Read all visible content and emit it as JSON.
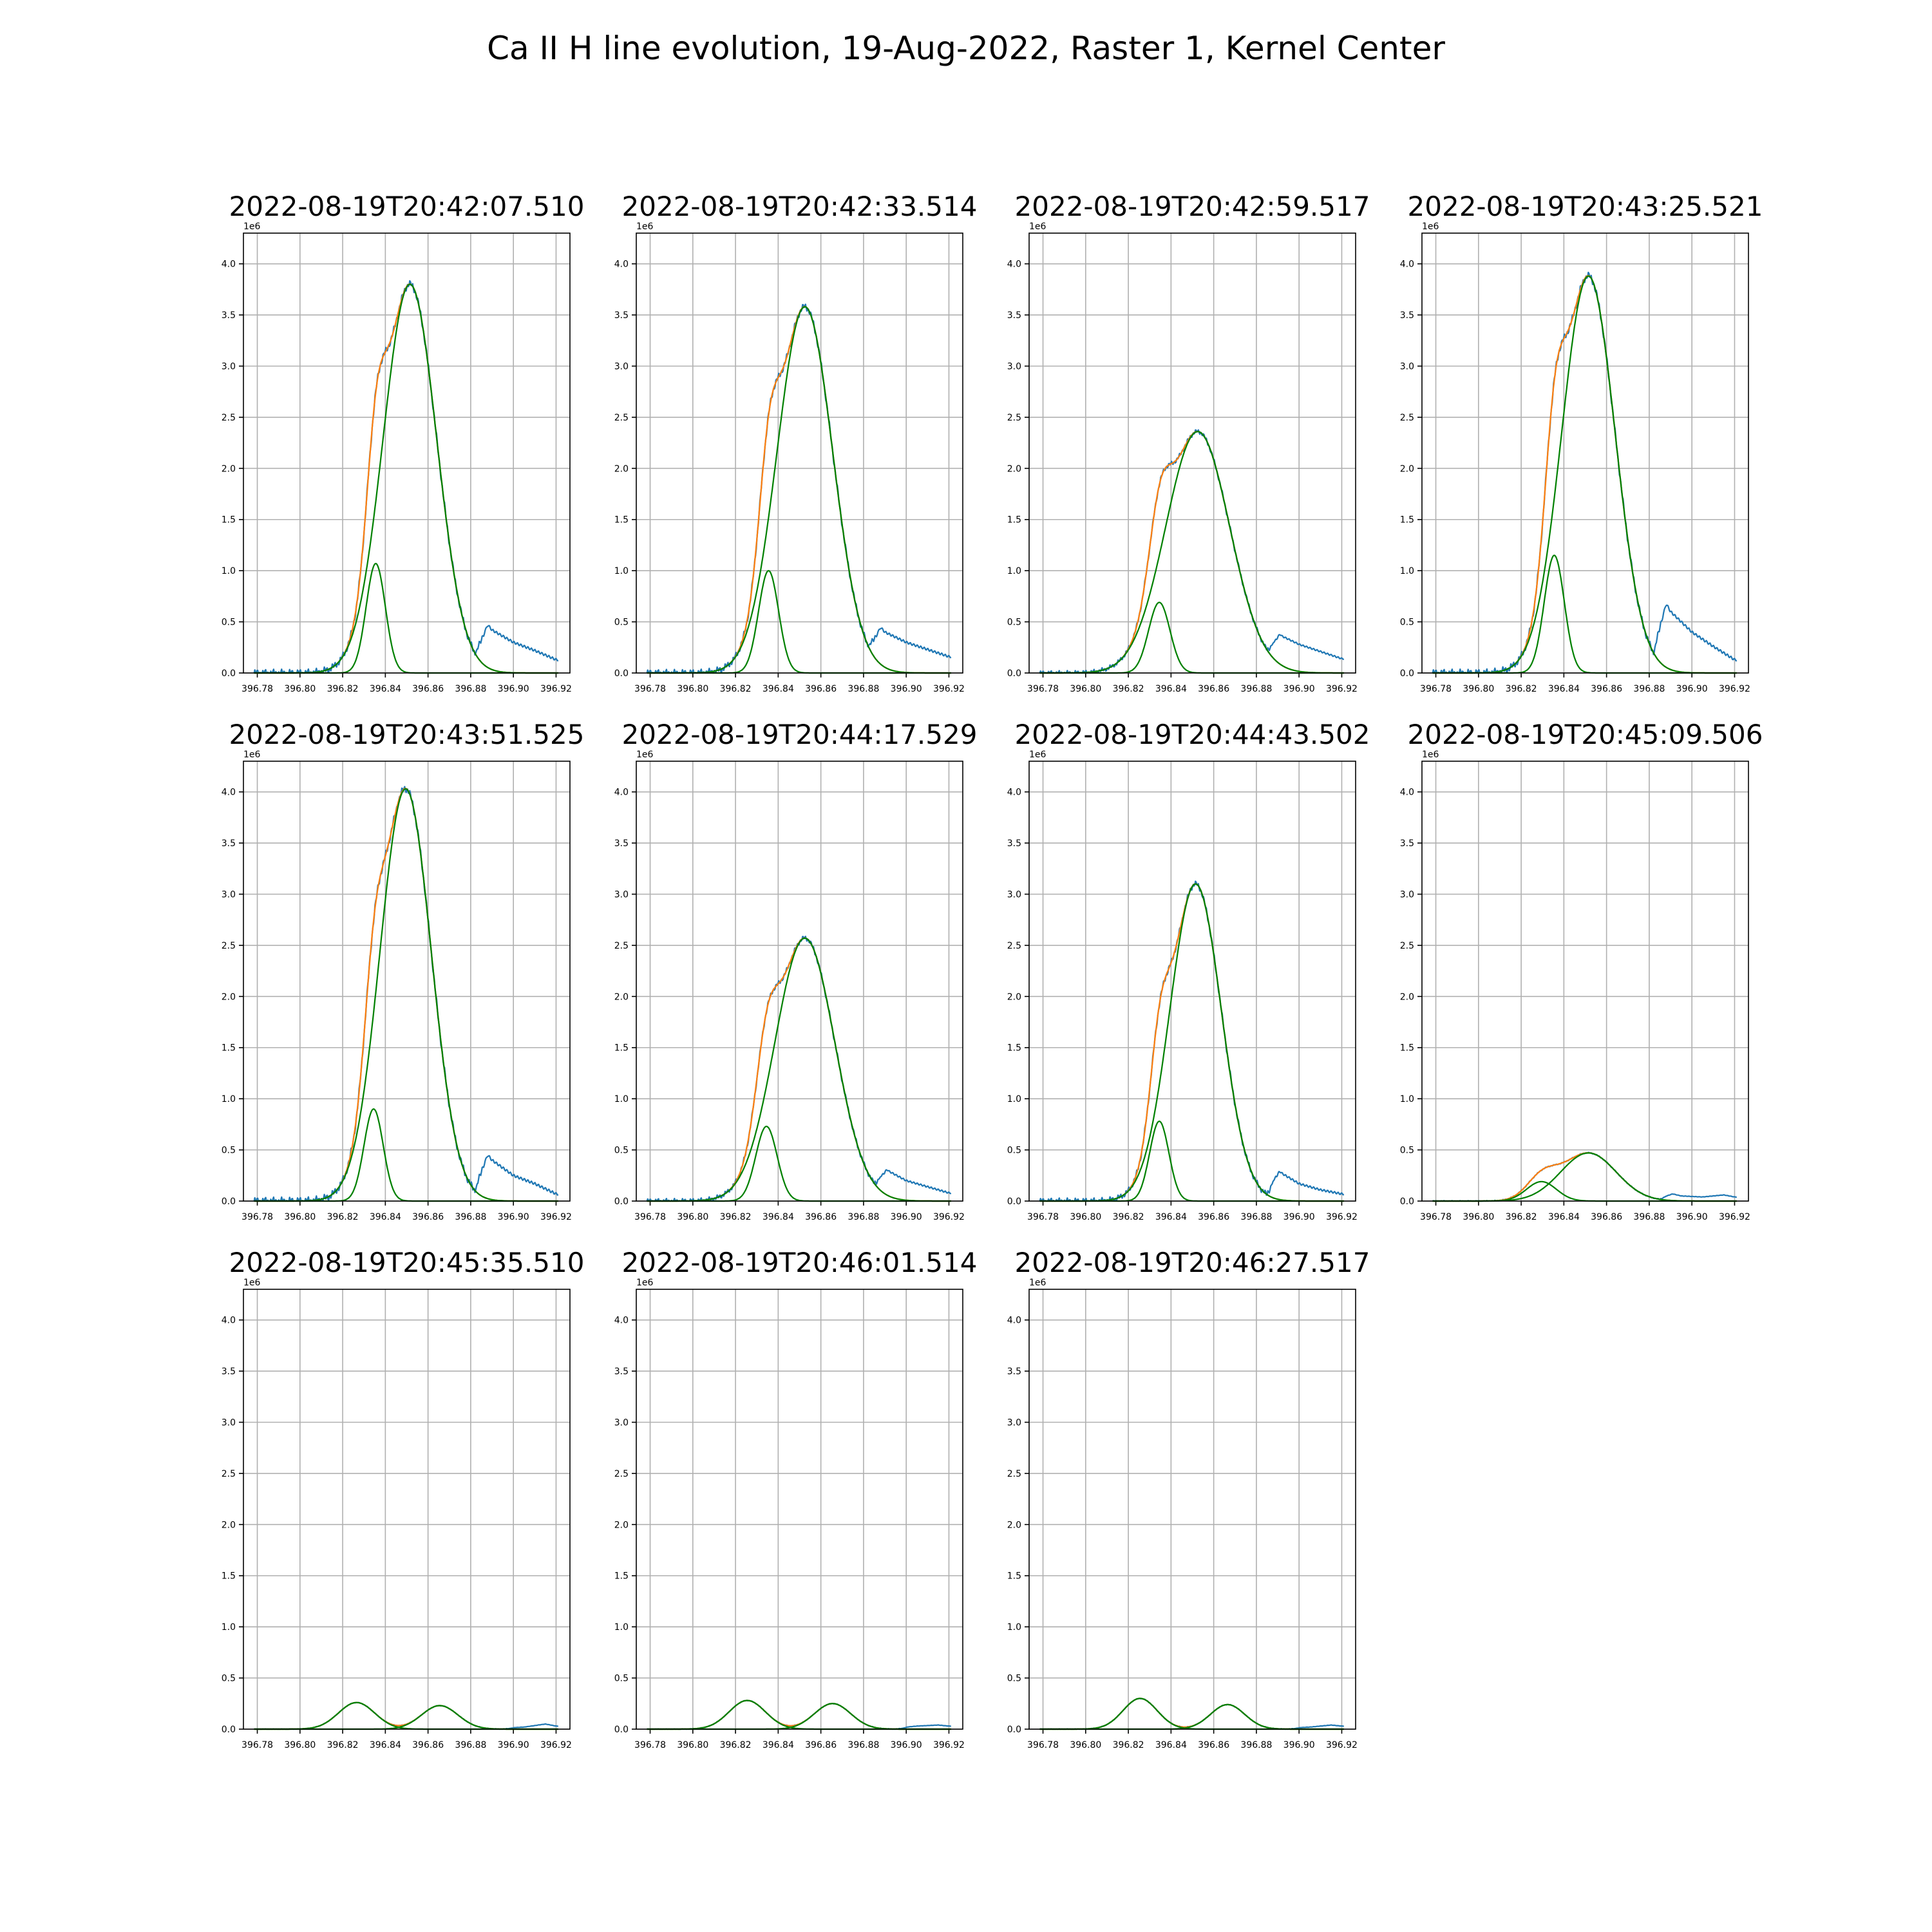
{
  "figure_title": "Ca II H line evolution, 19-Aug-2022, Raster 1, Kernel Center",
  "colors": {
    "observed": "#1f77b4",
    "fit_total": "#ff7f0e",
    "components": "#008000",
    "grid": "#b0b0b0"
  },
  "chart_data": [
    {
      "type": "line",
      "title": "2022-08-19T20:42:07.510",
      "offset_label": "1e6",
      "xlim": [
        396.7735,
        396.9265
      ],
      "ylim": [
        0,
        4300000
      ],
      "x_ticks": [
        "396.78",
        "396.80",
        "396.82",
        "396.84",
        "396.86",
        "396.88",
        "396.90",
        "396.92"
      ],
      "y_ticks": [
        "0.0",
        "0.5",
        "1.0",
        "1.5",
        "2.0",
        "2.5",
        "3.0",
        "3.5",
        "4.0"
      ],
      "grid": true,
      "components": [
        {
          "amplitude": 1070000,
          "center": 396.8355,
          "sigma": 0.0045
        },
        {
          "amplitude": 3800000,
          "center": 396.8515,
          "sigma": 0.0125
        }
      ],
      "observed_wing": [
        {
          "x": 396.882,
          "y": 620000
        },
        {
          "x": 396.89,
          "y": 420000
        },
        {
          "x": 396.9,
          "y": 300000
        },
        {
          "x": 396.91,
          "y": 220000
        },
        {
          "x": 396.92,
          "y": 130000
        }
      ]
    },
    {
      "type": "line",
      "title": "2022-08-19T20:42:33.514",
      "offset_label": "1e6",
      "xlim": [
        396.7735,
        396.9265
      ],
      "ylim": [
        0,
        4300000
      ],
      "x_ticks": [
        "396.78",
        "396.80",
        "396.82",
        "396.84",
        "396.86",
        "396.88",
        "396.90",
        "396.92"
      ],
      "y_ticks": [
        "0.0",
        "0.5",
        "1.0",
        "1.5",
        "2.0",
        "2.5",
        "3.0",
        "3.5",
        "4.0"
      ],
      "grid": true,
      "components": [
        {
          "amplitude": 1000000,
          "center": 396.8355,
          "sigma": 0.0047
        },
        {
          "amplitude": 3580000,
          "center": 396.8525,
          "sigma": 0.013
        }
      ],
      "observed_wing": [
        {
          "x": 396.882,
          "y": 580000
        },
        {
          "x": 396.89,
          "y": 400000
        },
        {
          "x": 396.9,
          "y": 300000
        },
        {
          "x": 396.91,
          "y": 230000
        },
        {
          "x": 396.92,
          "y": 160000
        }
      ]
    },
    {
      "type": "line",
      "title": "2022-08-19T20:42:59.517",
      "offset_label": "1e6",
      "xlim": [
        396.7735,
        396.9265
      ],
      "ylim": [
        0,
        4300000
      ],
      "x_ticks": [
        "396.78",
        "396.80",
        "396.82",
        "396.84",
        "396.86",
        "396.88",
        "396.90",
        "396.92"
      ],
      "y_ticks": [
        "0.0",
        "0.5",
        "1.0",
        "1.5",
        "2.0",
        "2.5",
        "3.0",
        "3.5",
        "4.0"
      ],
      "grid": true,
      "components": [
        {
          "amplitude": 690000,
          "center": 396.8345,
          "sigma": 0.005
        },
        {
          "amplitude": 2360000,
          "center": 396.8525,
          "sigma": 0.015
        }
      ],
      "observed_wing": [
        {
          "x": 396.885,
          "y": 500000
        },
        {
          "x": 396.892,
          "y": 360000
        },
        {
          "x": 396.9,
          "y": 280000
        },
        {
          "x": 396.91,
          "y": 210000
        },
        {
          "x": 396.92,
          "y": 140000
        }
      ]
    },
    {
      "type": "line",
      "title": "2022-08-19T20:43:25.521",
      "offset_label": "1e6",
      "xlim": [
        396.7735,
        396.9265
      ],
      "ylim": [
        0,
        4300000
      ],
      "x_ticks": [
        "396.78",
        "396.80",
        "396.82",
        "396.84",
        "396.86",
        "396.88",
        "396.90",
        "396.92"
      ],
      "y_ticks": [
        "0.0",
        "0.5",
        "1.0",
        "1.5",
        "2.0",
        "2.5",
        "3.0",
        "3.5",
        "4.0"
      ],
      "grid": true,
      "components": [
        {
          "amplitude": 1150000,
          "center": 396.8355,
          "sigma": 0.0047
        },
        {
          "amplitude": 3880000,
          "center": 396.8515,
          "sigma": 0.0125
        }
      ],
      "observed_wing": [
        {
          "x": 396.882,
          "y": 900000
        },
        {
          "x": 396.89,
          "y": 600000
        },
        {
          "x": 396.9,
          "y": 400000
        },
        {
          "x": 396.91,
          "y": 260000
        },
        {
          "x": 396.92,
          "y": 130000
        }
      ]
    },
    {
      "type": "line",
      "title": "2022-08-19T20:43:51.525",
      "offset_label": "1e6",
      "xlim": [
        396.7735,
        396.9265
      ],
      "ylim": [
        0,
        4300000
      ],
      "x_ticks": [
        "396.78",
        "396.80",
        "396.82",
        "396.84",
        "396.86",
        "396.88",
        "396.90",
        "396.92"
      ],
      "y_ticks": [
        "0.0",
        "0.5",
        "1.0",
        "1.5",
        "2.0",
        "2.5",
        "3.0",
        "3.5",
        "4.0"
      ],
      "grid": true,
      "components": [
        {
          "amplitude": 900000,
          "center": 396.8345,
          "sigma": 0.0045
        },
        {
          "amplitude": 4030000,
          "center": 396.8495,
          "sigma": 0.012
        }
      ],
      "observed_wing": [
        {
          "x": 396.882,
          "y": 600000
        },
        {
          "x": 396.89,
          "y": 400000
        },
        {
          "x": 396.9,
          "y": 250000
        },
        {
          "x": 396.91,
          "y": 170000
        },
        {
          "x": 396.92,
          "y": 70000
        }
      ]
    },
    {
      "type": "line",
      "title": "2022-08-19T20:44:17.529",
      "offset_label": "1e6",
      "xlim": [
        396.7735,
        396.9265
      ],
      "ylim": [
        0,
        4300000
      ],
      "x_ticks": [
        "396.78",
        "396.80",
        "396.82",
        "396.84",
        "396.86",
        "396.88",
        "396.90",
        "396.92"
      ],
      "y_ticks": [
        "0.0",
        "0.5",
        "1.0",
        "1.5",
        "2.0",
        "2.5",
        "3.0",
        "3.5",
        "4.0"
      ],
      "grid": true,
      "components": [
        {
          "amplitude": 730000,
          "center": 396.8345,
          "sigma": 0.005
        },
        {
          "amplitude": 2570000,
          "center": 396.8525,
          "sigma": 0.014
        }
      ],
      "observed_wing": [
        {
          "x": 396.885,
          "y": 420000
        },
        {
          "x": 396.892,
          "y": 290000
        },
        {
          "x": 396.9,
          "y": 200000
        },
        {
          "x": 396.91,
          "y": 140000
        },
        {
          "x": 396.92,
          "y": 80000
        }
      ]
    },
    {
      "type": "line",
      "title": "2022-08-19T20:44:43.502",
      "offset_label": "1e6",
      "xlim": [
        396.7735,
        396.9265
      ],
      "ylim": [
        0,
        4300000
      ],
      "x_ticks": [
        "396.78",
        "396.80",
        "396.82",
        "396.84",
        "396.86",
        "396.88",
        "396.90",
        "396.92"
      ],
      "y_ticks": [
        "0.0",
        "0.5",
        "1.0",
        "1.5",
        "2.0",
        "2.5",
        "3.0",
        "3.5",
        "4.0"
      ],
      "grid": true,
      "components": [
        {
          "amplitude": 780000,
          "center": 396.8345,
          "sigma": 0.0045
        },
        {
          "amplitude": 3100000,
          "center": 396.8515,
          "sigma": 0.012
        }
      ],
      "observed_wing": [
        {
          "x": 396.885,
          "y": 420000
        },
        {
          "x": 396.892,
          "y": 270000
        },
        {
          "x": 396.9,
          "y": 170000
        },
        {
          "x": 396.91,
          "y": 110000
        },
        {
          "x": 396.92,
          "y": 70000
        }
      ]
    },
    {
      "type": "line",
      "title": "2022-08-19T20:45:09.506",
      "offset_label": "1e6",
      "xlim": [
        396.7735,
        396.9265
      ],
      "ylim": [
        0,
        4300000
      ],
      "x_ticks": [
        "396.78",
        "396.80",
        "396.82",
        "396.84",
        "396.86",
        "396.88",
        "396.90",
        "396.92"
      ],
      "y_ticks": [
        "0.0",
        "0.5",
        "1.0",
        "1.5",
        "2.0",
        "2.5",
        "3.0",
        "3.5",
        "4.0"
      ],
      "grid": true,
      "components": [
        {
          "amplitude": 190000,
          "center": 396.8295,
          "sigma": 0.007
        },
        {
          "amplitude": 470000,
          "center": 396.8515,
          "sigma": 0.013
        }
      ],
      "observed_wing": [
        {
          "x": 396.885,
          "y": 100000
        },
        {
          "x": 396.895,
          "y": 50000
        },
        {
          "x": 396.905,
          "y": 40000
        },
        {
          "x": 396.915,
          "y": 60000
        },
        {
          "x": 396.92,
          "y": 40000
        }
      ]
    },
    {
      "type": "line",
      "title": "2022-08-19T20:45:35.510",
      "offset_label": "1e6",
      "xlim": [
        396.7735,
        396.9265
      ],
      "ylim": [
        0,
        4300000
      ],
      "x_ticks": [
        "396.78",
        "396.80",
        "396.82",
        "396.84",
        "396.86",
        "396.88",
        "396.90",
        "396.92"
      ],
      "y_ticks": [
        "0.0",
        "0.5",
        "1.0",
        "1.5",
        "2.0",
        "2.5",
        "3.0",
        "3.5",
        "4.0"
      ],
      "grid": true,
      "components": [
        {
          "amplitude": 260000,
          "center": 396.8265,
          "sigma": 0.0085
        },
        {
          "amplitude": 230000,
          "center": 396.8655,
          "sigma": 0.0085
        }
      ],
      "observed_wing": [
        {
          "x": 396.895,
          "y": 10000
        },
        {
          "x": 396.905,
          "y": 20000
        },
        {
          "x": 396.915,
          "y": 50000
        },
        {
          "x": 396.92,
          "y": 30000
        }
      ]
    },
    {
      "type": "line",
      "title": "2022-08-19T20:46:01.514",
      "offset_label": "1e6",
      "xlim": [
        396.7735,
        396.9265
      ],
      "ylim": [
        0,
        4300000
      ],
      "x_ticks": [
        "396.78",
        "396.80",
        "396.82",
        "396.84",
        "396.86",
        "396.88",
        "396.90",
        "396.92"
      ],
      "y_ticks": [
        "0.0",
        "0.5",
        "1.0",
        "1.5",
        "2.0",
        "2.5",
        "3.0",
        "3.5",
        "4.0"
      ],
      "grid": true,
      "components": [
        {
          "amplitude": 280000,
          "center": 396.8255,
          "sigma": 0.0085
        },
        {
          "amplitude": 250000,
          "center": 396.8655,
          "sigma": 0.0085
        }
      ],
      "observed_wing": [
        {
          "x": 396.895,
          "y": 10000
        },
        {
          "x": 396.905,
          "y": 30000
        },
        {
          "x": 396.915,
          "y": 40000
        },
        {
          "x": 396.92,
          "y": 30000
        }
      ]
    },
    {
      "type": "line",
      "title": "2022-08-19T20:46:27.517",
      "offset_label": "1e6",
      "xlim": [
        396.7735,
        396.9265
      ],
      "ylim": [
        0,
        4300000
      ],
      "x_ticks": [
        "396.78",
        "396.80",
        "396.82",
        "396.84",
        "396.86",
        "396.88",
        "396.90",
        "396.92"
      ],
      "y_ticks": [
        "0.0",
        "0.5",
        "1.0",
        "1.5",
        "2.0",
        "2.5",
        "3.0",
        "3.5",
        "4.0"
      ],
      "grid": true,
      "components": [
        {
          "amplitude": 300000,
          "center": 396.8255,
          "sigma": 0.008
        },
        {
          "amplitude": 240000,
          "center": 396.8665,
          "sigma": 0.008
        }
      ],
      "observed_wing": [
        {
          "x": 396.895,
          "y": 10000
        },
        {
          "x": 396.905,
          "y": 20000
        },
        {
          "x": 396.915,
          "y": 40000
        },
        {
          "x": 396.92,
          "y": 30000
        }
      ]
    }
  ]
}
